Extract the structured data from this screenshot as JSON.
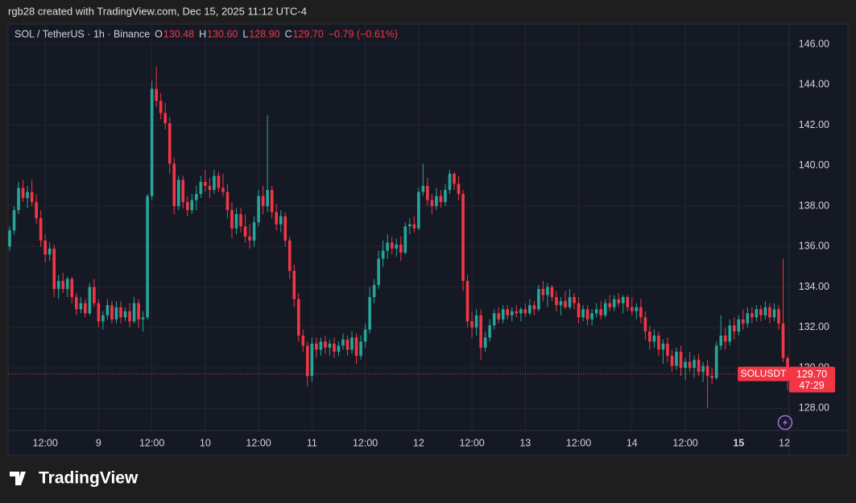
{
  "chart_data": {
    "type": "candlestick",
    "credit": "rgb28 created with TradingView.com, Dec 15, 2025 11:12 UTC-4",
    "title": "SOL / TetherUS · 1h · Binance",
    "ohlc_names": [
      "O",
      "H",
      "L",
      "C"
    ],
    "ohlc_labels": [
      "130.48",
      "130.60",
      "128.90",
      "129.70"
    ],
    "change": "−0.79 (−0.61%)",
    "symbol": "SOLUSDT",
    "last_price_label": "129.70",
    "countdown": "47:29",
    "brand": "TradingView",
    "up_color": "#26a69a",
    "down_color": "#f23645",
    "grid": true,
    "ylim": [
      126.9,
      147.0
    ],
    "yticks": [
      {
        "value": 128,
        "label": "128.00"
      },
      {
        "value": 130,
        "label": "130.00"
      },
      {
        "value": 132,
        "label": "132.00"
      },
      {
        "value": 134,
        "label": "134.00"
      },
      {
        "value": 136,
        "label": "136.00"
      },
      {
        "value": 138,
        "label": "138.00"
      },
      {
        "value": 140,
        "label": "140.00"
      },
      {
        "value": 142,
        "label": "142.00"
      },
      {
        "value": 144,
        "label": "144.00"
      },
      {
        "value": 146,
        "label": "146.00"
      }
    ],
    "xticks": [
      {
        "value": 8,
        "label": "12:00"
      },
      {
        "value": 20,
        "label": "9"
      },
      {
        "value": 32,
        "label": "12:00"
      },
      {
        "value": 44,
        "label": "10"
      },
      {
        "value": 56,
        "label": "12:00"
      },
      {
        "value": 68,
        "label": "11"
      },
      {
        "value": 80,
        "label": "12:00"
      },
      {
        "value": 92,
        "label": "12"
      },
      {
        "value": 104,
        "label": "12:00"
      },
      {
        "value": 116,
        "label": "13"
      },
      {
        "value": 128,
        "label": "12:00"
      },
      {
        "value": 140,
        "label": "14"
      },
      {
        "value": 152,
        "label": "12:00"
      },
      {
        "value": 164,
        "label": "15"
      },
      {
        "value": 176,
        "label": "12"
      }
    ],
    "candles": [
      [
        136.0,
        137.0,
        135.8,
        136.8
      ],
      [
        136.8,
        138.0,
        136.6,
        137.8
      ],
      [
        137.8,
        139.2,
        137.6,
        138.9
      ],
      [
        138.9,
        139.3,
        138.2,
        138.4
      ],
      [
        138.4,
        139.0,
        137.9,
        138.7
      ],
      [
        138.7,
        139.3,
        138.0,
        138.2
      ],
      [
        138.2,
        138.6,
        137.1,
        137.4
      ],
      [
        137.4,
        137.8,
        136.0,
        136.3
      ],
      [
        136.3,
        136.6,
        135.2,
        135.6
      ],
      [
        135.6,
        136.2,
        135.3,
        135.9
      ],
      [
        135.9,
        136.1,
        133.5,
        133.9
      ],
      [
        133.9,
        134.6,
        133.4,
        134.3
      ],
      [
        134.3,
        134.7,
        133.7,
        133.9
      ],
      [
        133.9,
        134.5,
        133.5,
        134.4
      ],
      [
        134.4,
        134.5,
        133.2,
        133.5
      ],
      [
        133.5,
        133.7,
        132.6,
        132.9
      ],
      [
        132.9,
        133.5,
        132.7,
        133.2
      ],
      [
        133.2,
        133.4,
        132.5,
        132.7
      ],
      [
        132.7,
        134.2,
        132.6,
        134.0
      ],
      [
        134.0,
        134.4,
        133.0,
        133.2
      ],
      [
        133.2,
        133.4,
        132.0,
        132.3
      ],
      [
        132.3,
        132.8,
        131.9,
        132.6
      ],
      [
        132.6,
        133.4,
        132.4,
        133.1
      ],
      [
        133.1,
        133.3,
        132.2,
        132.4
      ],
      [
        132.4,
        133.3,
        132.2,
        133.0
      ],
      [
        133.0,
        133.3,
        132.2,
        132.5
      ],
      [
        132.5,
        133.0,
        132.3,
        132.8
      ],
      [
        132.8,
        133.2,
        132.0,
        132.3
      ],
      [
        132.3,
        133.5,
        132.2,
        133.2
      ],
      [
        133.2,
        133.4,
        132.0,
        132.4
      ],
      [
        132.4,
        132.8,
        131.8,
        132.5
      ],
      [
        132.5,
        138.6,
        132.4,
        138.5
      ],
      [
        138.5,
        144.2,
        138.3,
        143.8
      ],
      [
        143.8,
        144.9,
        142.9,
        143.2
      ],
      [
        143.2,
        143.6,
        142.3,
        142.6
      ],
      [
        142.6,
        143.1,
        141.8,
        142.1
      ],
      [
        142.1,
        142.4,
        139.6,
        140.1
      ],
      [
        140.1,
        140.4,
        137.6,
        138.0
      ],
      [
        138.0,
        139.5,
        137.8,
        139.3
      ],
      [
        139.3,
        139.5,
        137.9,
        138.2
      ],
      [
        138.2,
        138.5,
        137.5,
        137.8
      ],
      [
        137.8,
        138.6,
        137.6,
        138.3
      ],
      [
        138.3,
        139.0,
        137.8,
        138.6
      ],
      [
        138.6,
        139.5,
        138.4,
        139.2
      ],
      [
        139.2,
        139.8,
        138.7,
        139.0
      ],
      [
        139.0,
        139.4,
        138.4,
        138.8
      ],
      [
        138.8,
        139.8,
        138.6,
        139.5
      ],
      [
        139.5,
        139.7,
        138.7,
        138.9
      ],
      [
        138.9,
        139.6,
        138.5,
        138.7
      ],
      [
        138.7,
        139.1,
        137.4,
        137.8
      ],
      [
        137.8,
        138.2,
        136.4,
        136.9
      ],
      [
        136.9,
        137.9,
        136.6,
        137.6
      ],
      [
        137.6,
        137.9,
        136.7,
        137.0
      ],
      [
        137.0,
        137.6,
        136.2,
        136.5
      ],
      [
        136.5,
        137.1,
        135.9,
        136.3
      ],
      [
        136.3,
        137.5,
        136.0,
        137.2
      ],
      [
        137.2,
        138.8,
        137.0,
        138.5
      ],
      [
        138.5,
        139.0,
        137.6,
        138.0
      ],
      [
        138.0,
        142.5,
        137.7,
        138.8
      ],
      [
        138.8,
        139.0,
        137.4,
        137.7
      ],
      [
        137.7,
        138.1,
        136.8,
        137.1
      ],
      [
        137.1,
        137.8,
        136.7,
        137.5
      ],
      [
        137.5,
        137.7,
        136.0,
        136.3
      ],
      [
        136.3,
        136.5,
        134.4,
        134.8
      ],
      [
        134.8,
        135.1,
        133.0,
        133.4
      ],
      [
        133.4,
        133.7,
        131.3,
        131.6
      ],
      [
        131.6,
        131.9,
        130.8,
        131.1
      ],
      [
        131.1,
        131.3,
        129.1,
        129.6
      ],
      [
        129.6,
        131.5,
        129.3,
        131.2
      ],
      [
        131.2,
        131.5,
        130.5,
        130.9
      ],
      [
        130.9,
        131.5,
        130.6,
        131.3
      ],
      [
        131.3,
        131.6,
        130.7,
        131.0
      ],
      [
        131.0,
        131.4,
        130.6,
        131.2
      ],
      [
        131.2,
        131.5,
        130.5,
        130.8
      ],
      [
        130.8,
        131.3,
        130.6,
        131.1
      ],
      [
        131.1,
        131.7,
        130.9,
        131.4
      ],
      [
        131.4,
        131.6,
        130.6,
        130.9
      ],
      [
        130.9,
        131.8,
        130.7,
        131.5
      ],
      [
        131.5,
        131.7,
        130.2,
        130.6
      ],
      [
        130.6,
        131.6,
        130.4,
        131.3
      ],
      [
        131.3,
        132.2,
        131.0,
        131.9
      ],
      [
        131.9,
        134.0,
        131.7,
        133.5
      ],
      [
        133.5,
        134.4,
        133.2,
        134.1
      ],
      [
        134.1,
        135.8,
        133.9,
        135.4
      ],
      [
        135.4,
        136.3,
        135.0,
        135.8
      ],
      [
        135.8,
        136.6,
        135.4,
        136.2
      ],
      [
        136.2,
        136.5,
        135.6,
        135.9
      ],
      [
        135.9,
        136.4,
        135.5,
        136.1
      ],
      [
        136.1,
        136.5,
        135.3,
        135.7
      ],
      [
        135.7,
        137.2,
        135.6,
        137.0
      ],
      [
        137.0,
        137.4,
        136.6,
        137.1
      ],
      [
        137.1,
        137.5,
        136.7,
        136.9
      ],
      [
        136.9,
        138.9,
        136.8,
        138.7
      ],
      [
        138.7,
        140.1,
        138.5,
        139.0
      ],
      [
        139.0,
        139.4,
        138.0,
        138.3
      ],
      [
        138.3,
        138.6,
        137.6,
        138.0
      ],
      [
        138.0,
        138.9,
        137.8,
        138.5
      ],
      [
        138.5,
        138.8,
        137.9,
        138.2
      ],
      [
        138.2,
        139.1,
        138.0,
        138.8
      ],
      [
        138.8,
        139.8,
        138.6,
        139.6
      ],
      [
        139.6,
        139.7,
        138.8,
        139.1
      ],
      [
        139.1,
        139.5,
        138.3,
        138.6
      ],
      [
        138.6,
        138.8,
        133.8,
        134.3
      ],
      [
        134.3,
        134.6,
        132.0,
        132.3
      ],
      [
        132.3,
        132.8,
        131.5,
        132.0
      ],
      [
        132.0,
        132.9,
        131.6,
        132.6
      ],
      [
        132.6,
        132.9,
        130.4,
        131.0
      ],
      [
        131.0,
        131.8,
        130.8,
        131.5
      ],
      [
        131.5,
        132.4,
        131.3,
        132.1
      ],
      [
        132.1,
        132.9,
        131.9,
        132.7
      ],
      [
        132.7,
        133.0,
        132.2,
        132.4
      ],
      [
        132.4,
        133.1,
        132.2,
        132.9
      ],
      [
        132.9,
        133.1,
        132.4,
        132.6
      ],
      [
        132.6,
        133.0,
        132.3,
        132.8
      ],
      [
        132.8,
        133.1,
        132.5,
        132.7
      ],
      [
        132.7,
        133.0,
        132.3,
        132.9
      ],
      [
        132.9,
        133.2,
        132.5,
        132.7
      ],
      [
        132.7,
        133.4,
        132.6,
        133.1
      ],
      [
        133.1,
        133.3,
        132.6,
        132.9
      ],
      [
        132.9,
        134.1,
        132.8,
        133.9
      ],
      [
        133.9,
        134.3,
        133.3,
        133.6
      ],
      [
        133.6,
        134.2,
        133.0,
        134.0
      ],
      [
        134.0,
        134.1,
        133.3,
        133.5
      ],
      [
        133.5,
        133.8,
        132.8,
        133.1
      ],
      [
        133.1,
        133.5,
        132.6,
        133.3
      ],
      [
        133.3,
        133.8,
        132.9,
        133.0
      ],
      [
        133.0,
        133.9,
        132.9,
        133.5
      ],
      [
        133.5,
        133.7,
        132.9,
        133.2
      ],
      [
        133.2,
        133.5,
        132.2,
        132.5
      ],
      [
        132.5,
        133.1,
        132.3,
        132.9
      ],
      [
        132.9,
        133.1,
        132.1,
        132.4
      ],
      [
        132.4,
        132.9,
        132.1,
        132.7
      ],
      [
        132.7,
        133.2,
        132.5,
        132.9
      ],
      [
        132.9,
        133.3,
        132.4,
        132.6
      ],
      [
        132.6,
        133.4,
        132.5,
        133.2
      ],
      [
        133.2,
        133.6,
        132.8,
        133.0
      ],
      [
        133.0,
        133.6,
        132.8,
        133.4
      ],
      [
        133.4,
        133.7,
        133.0,
        133.2
      ],
      [
        133.2,
        133.6,
        132.7,
        133.5
      ],
      [
        133.5,
        133.6,
        132.8,
        133.0
      ],
      [
        133.0,
        133.5,
        132.6,
        132.8
      ],
      [
        132.8,
        133.2,
        132.4,
        133.0
      ],
      [
        133.0,
        133.4,
        132.2,
        132.5
      ],
      [
        132.5,
        132.8,
        131.4,
        131.8
      ],
      [
        131.8,
        132.1,
        130.9,
        131.3
      ],
      [
        131.3,
        131.9,
        131.0,
        131.6
      ],
      [
        131.6,
        131.8,
        130.6,
        130.9
      ],
      [
        130.9,
        131.4,
        130.2,
        131.2
      ],
      [
        131.2,
        131.5,
        130.3,
        130.6
      ],
      [
        130.6,
        130.9,
        129.8,
        130.1
      ],
      [
        130.1,
        131.0,
        129.9,
        130.8
      ],
      [
        130.8,
        131.1,
        129.6,
        130.0
      ],
      [
        130.0,
        130.5,
        129.4,
        130.3
      ],
      [
        130.3,
        130.8,
        129.8,
        130.0
      ],
      [
        130.0,
        130.6,
        129.5,
        130.4
      ],
      [
        130.4,
        130.7,
        129.6,
        129.8
      ],
      [
        129.8,
        130.3,
        129.3,
        130.1
      ],
      [
        130.1,
        130.4,
        128.0,
        129.6
      ],
      [
        129.6,
        130.0,
        129.2,
        129.5
      ],
      [
        129.5,
        131.3,
        129.4,
        131.1
      ],
      [
        131.1,
        132.6,
        130.9,
        131.6
      ],
      [
        131.6,
        132.0,
        130.9,
        131.3
      ],
      [
        131.3,
        132.4,
        131.1,
        132.1
      ],
      [
        132.1,
        132.5,
        131.4,
        131.8
      ],
      [
        131.8,
        132.6,
        131.6,
        132.4
      ],
      [
        132.4,
        132.9,
        131.9,
        132.2
      ],
      [
        132.2,
        133.0,
        132.0,
        132.7
      ],
      [
        132.7,
        133.0,
        132.2,
        132.5
      ],
      [
        132.5,
        133.1,
        132.3,
        132.9
      ],
      [
        132.9,
        133.1,
        132.3,
        132.6
      ],
      [
        132.6,
        133.3,
        132.4,
        133.0
      ],
      [
        133.0,
        133.2,
        132.2,
        132.5
      ],
      [
        132.5,
        133.2,
        132.3,
        132.9
      ],
      [
        132.9,
        133.1,
        131.9,
        132.2
      ],
      [
        132.2,
        135.4,
        130.3,
        130.49
      ],
      [
        130.48,
        130.6,
        128.9,
        129.7
      ]
    ]
  }
}
